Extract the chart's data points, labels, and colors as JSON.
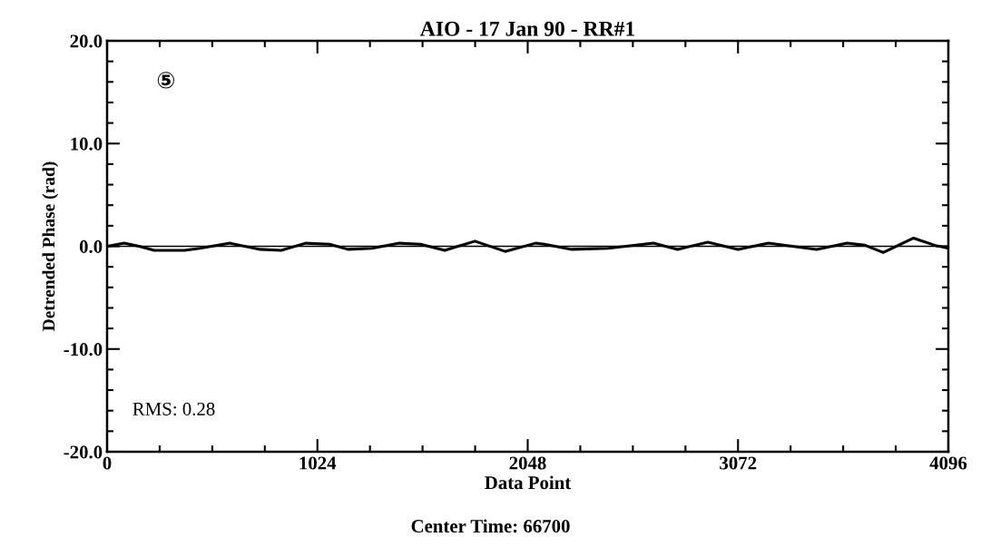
{
  "chart_data": {
    "type": "line",
    "title": "AIO - 17 Jan 90 - RR#1",
    "xlabel": "Data Point",
    "ylabel": "Detrended Phase (rad)",
    "x": [
      0,
      83,
      156,
      230,
      377,
      451,
      598,
      745,
      848,
      966,
      1084,
      1172,
      1290,
      1423,
      1526,
      1644,
      1791,
      1938,
      2086,
      2130,
      2262,
      2439,
      2660,
      2778,
      2925,
      3072,
      3220,
      3337,
      3455,
      3603,
      3691,
      3779,
      3927,
      4030,
      4096
    ],
    "series": [
      {
        "color": "#000000",
        "values": [
          0.0,
          0.3,
          0.0,
          -0.4,
          -0.4,
          -0.2,
          0.3,
          -0.3,
          -0.4,
          0.3,
          0.2,
          -0.3,
          -0.2,
          0.3,
          0.2,
          -0.4,
          0.5,
          -0.5,
          0.3,
          0.2,
          -0.3,
          -0.2,
          0.3,
          -0.3,
          0.4,
          -0.3,
          0.3,
          0.0,
          -0.3,
          0.3,
          0.1,
          -0.6,
          0.8,
          0.1,
          -0.2
        ]
      }
    ],
    "xlim": [
      0,
      4096
    ],
    "xticks": [
      0,
      1024,
      2048,
      3072,
      4096
    ],
    "ylim": [
      -20,
      20
    ],
    "yticks": [
      {
        "value": -20,
        "label": "-20.0"
      },
      {
        "value": -10,
        "label": "-10.0"
      },
      {
        "value": 0,
        "label": "0.0"
      },
      {
        "value": 10,
        "label": "10.0"
      },
      {
        "value": 20,
        "label": "20.0"
      }
    ],
    "ref_lines": [
      {
        "axis": "y",
        "value": 0,
        "color": "#000000"
      }
    ],
    "annotations": [
      "⑤",
      "RMS: 0.28",
      "Center Time: 66700"
    ],
    "grid": false,
    "legend": false,
    "marker": "none",
    "line_style": "solid"
  }
}
